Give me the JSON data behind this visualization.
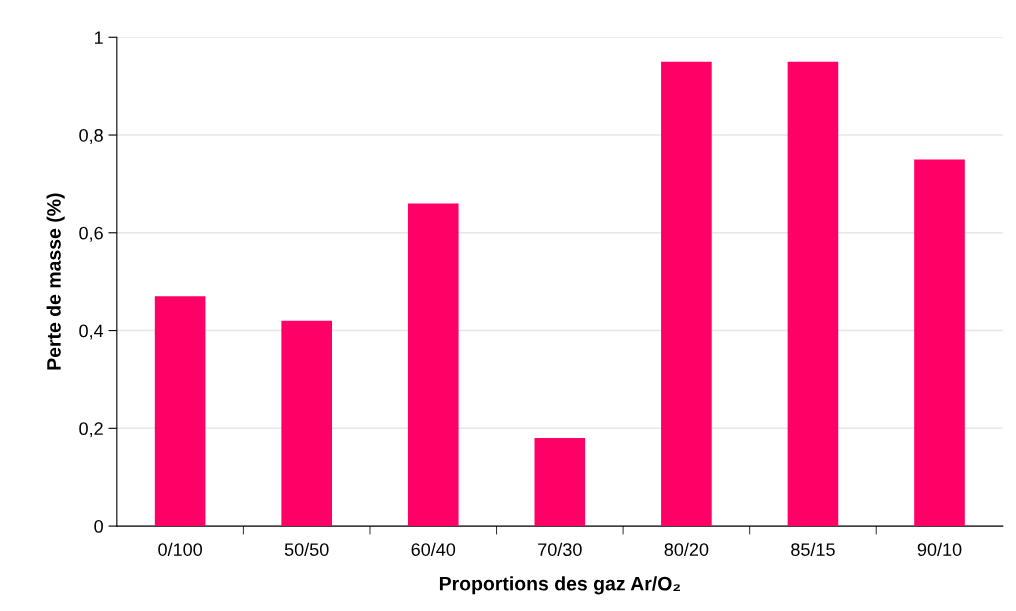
{
  "chart_data": {
    "type": "bar",
    "xlabel": "Proportions des gaz Ar/O₂",
    "ylabel": "Perte de masse (%)",
    "categories": [
      "0/100",
      "50/50",
      "60/40",
      "70/30",
      "80/20",
      "85/15",
      "90/10"
    ],
    "values": [
      0.47,
      0.42,
      0.66,
      0.18,
      0.95,
      0.95,
      0.75
    ],
    "color": "#ff0066",
    "ylim": [
      0,
      1
    ],
    "yticks": [
      {
        "value": 0,
        "label": "0"
      },
      {
        "value": 0.2,
        "label": "0,2"
      },
      {
        "value": 0.4,
        "label": "0,4"
      },
      {
        "value": 0.6,
        "label": "0,6"
      },
      {
        "value": 0.8,
        "label": "0,8"
      },
      {
        "value": 1,
        "label": "1"
      }
    ],
    "grid": "y",
    "legend": false
  }
}
